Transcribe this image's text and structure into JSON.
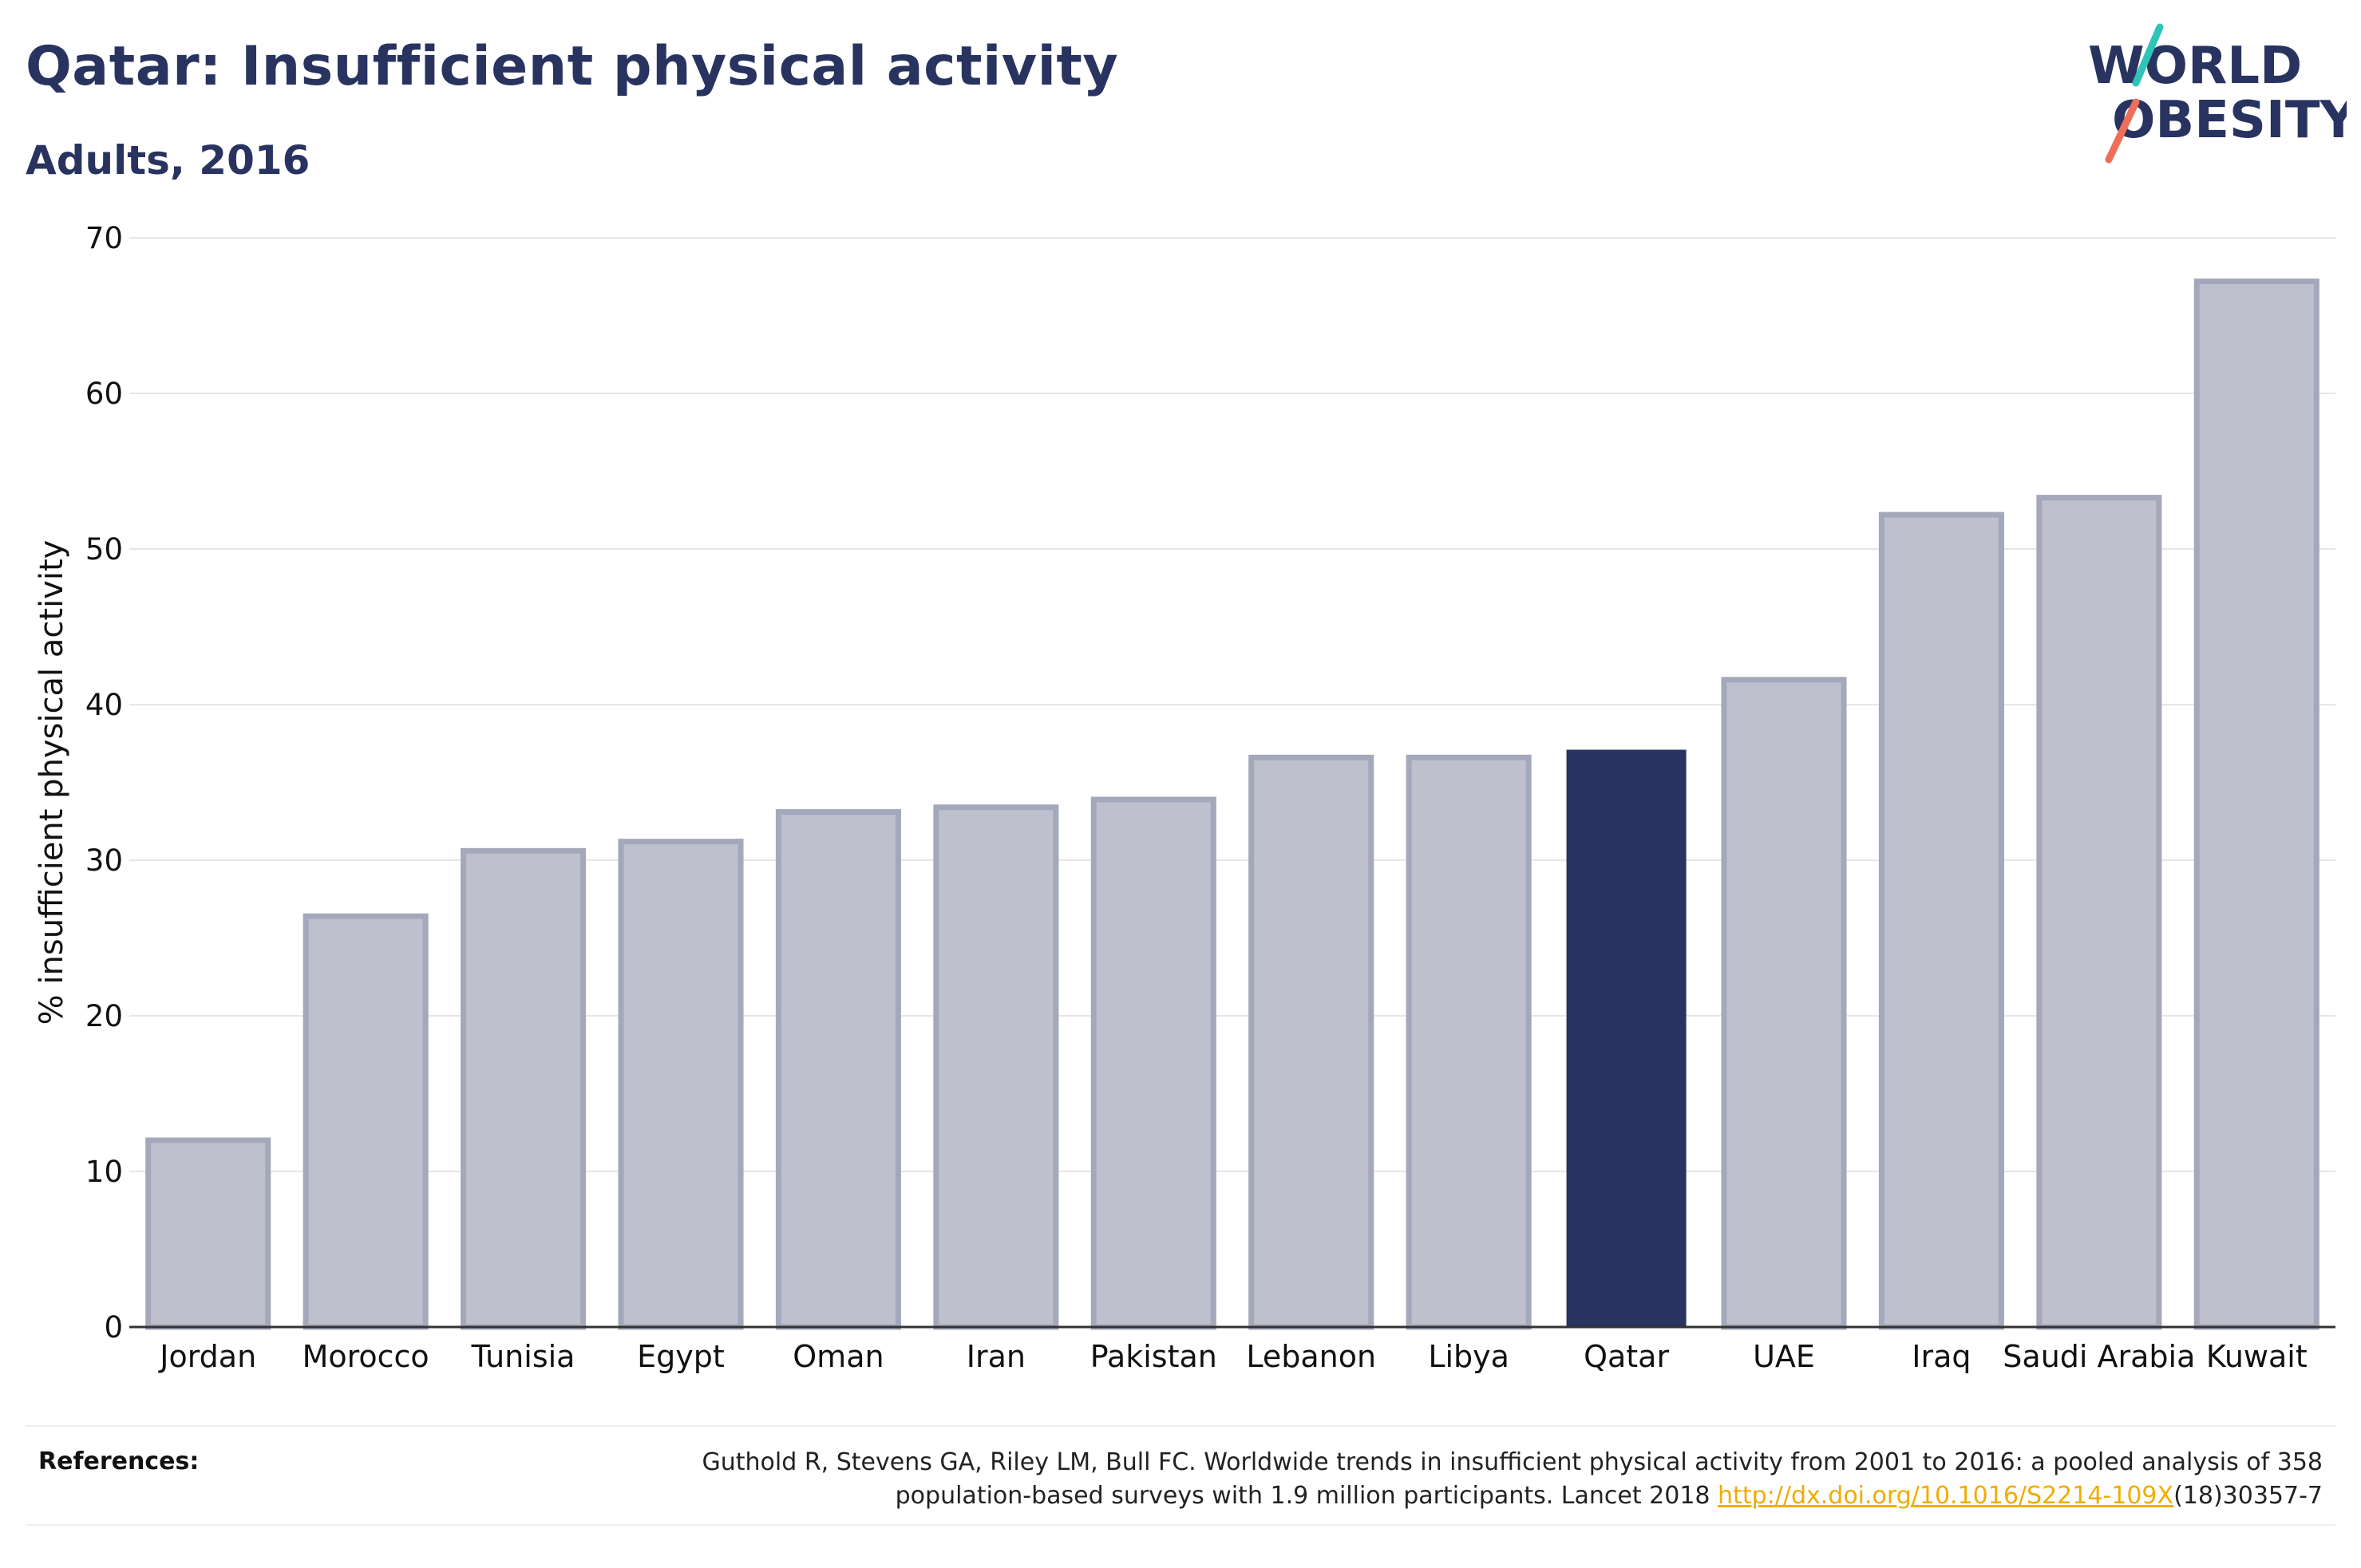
{
  "header": {
    "title": "Qatar: Insufficient physical activity",
    "subtitle": "Adults, 2016"
  },
  "logo": {
    "line1": "WORLD",
    "line2": "OBESITY",
    "icon": "world-obesity-logo"
  },
  "colors": {
    "highlight": "#283360",
    "bar_fill": "#bec1cd",
    "bar_stroke": "#a3a8ba",
    "logo_teal": "#2ec4b6",
    "logo_coral": "#ee6e5a",
    "link": "#f0ad00"
  },
  "chart_data": {
    "type": "bar",
    "title": "Qatar: Insufficient physical activity",
    "subtitle": "Adults, 2016",
    "xlabel": "",
    "ylabel": "% insufficient physical activity",
    "categories": [
      "Jordan",
      "Morocco",
      "Tunisia",
      "Egypt",
      "Oman",
      "Iran",
      "Pakistan",
      "Lebanon",
      "Libya",
      "Qatar",
      "UAE",
      "Iraq",
      "Saudi Arabia",
      "Kuwait"
    ],
    "values": [
      12.0,
      26.4,
      30.6,
      31.2,
      33.1,
      33.4,
      33.9,
      36.6,
      36.6,
      37.1,
      41.6,
      52.2,
      53.3,
      67.2
    ],
    "highlight": "Qatar",
    "ylim": [
      0,
      70
    ],
    "yticks": [
      0,
      10,
      20,
      30,
      40,
      50,
      60,
      70
    ],
    "grid": true,
    "legend": "none"
  },
  "references": {
    "label": "References:",
    "text_before": "Guthold R, Stevens GA, Riley LM, Bull FC. Worldwide trends in insufficient physical activity from 2001 to 2016: a pooled analysis of 358 population-based surveys with 1.9 million participants. Lancet 2018 ",
    "link_text": "http://dx.doi.org/10.1016/S2214-109X",
    "text_after": "(18)30357-7"
  }
}
